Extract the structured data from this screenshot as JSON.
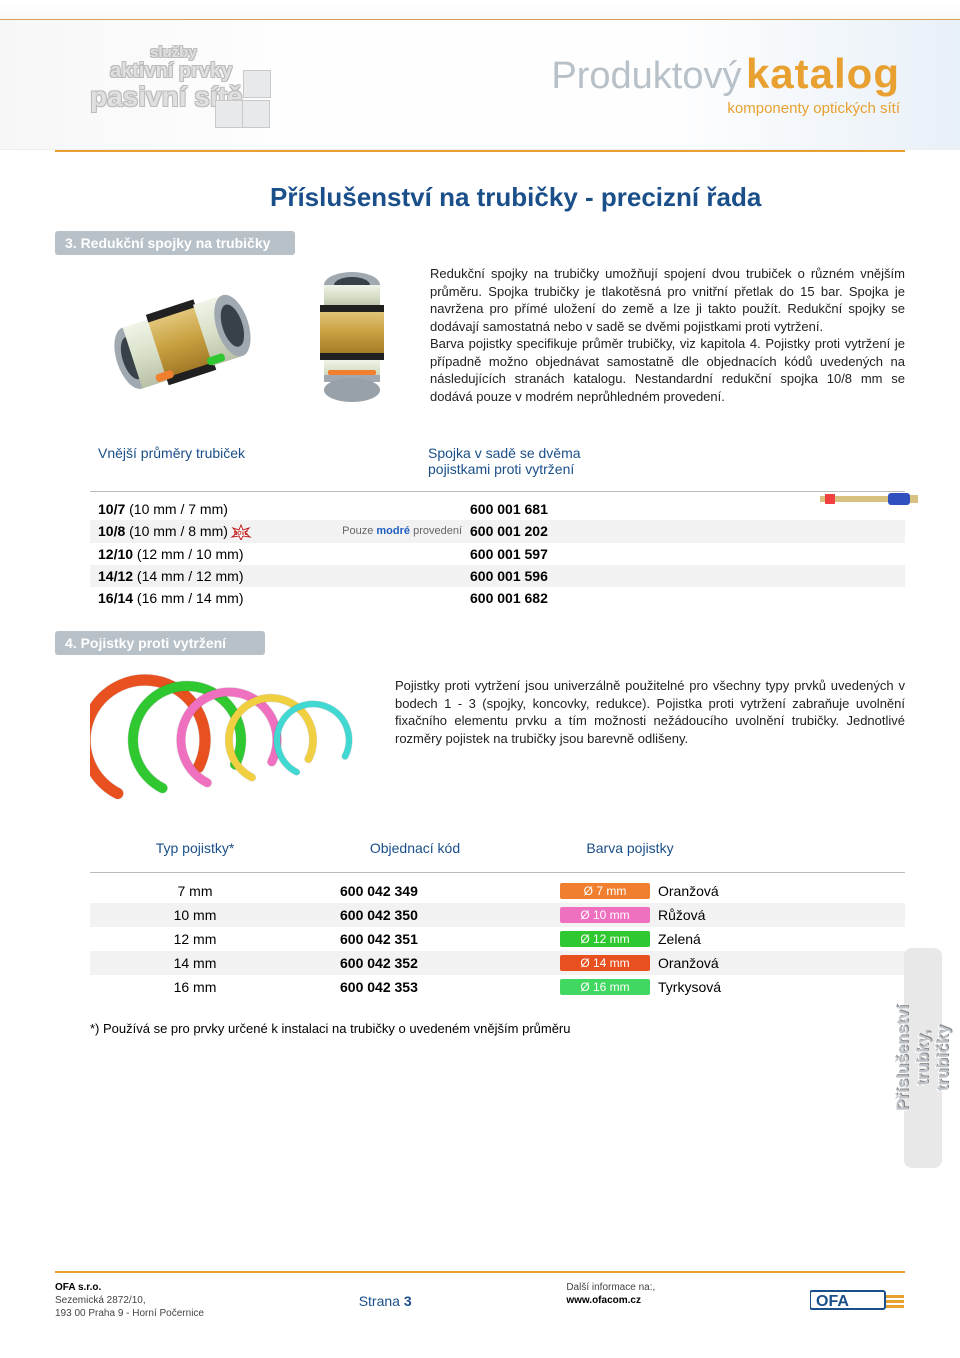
{
  "header": {
    "left_lines": [
      "služby",
      "aktivní prvky",
      "pasivní sítě"
    ],
    "title_light": "Produktový",
    "title_bold": "katalog",
    "subtitle": "komponenty optických sítí"
  },
  "page_title": "Příslušenství na trubičky - precizní řada",
  "section3": {
    "bar": "3. Redukční spojky na trubičky",
    "description": "Redukční spojky na trubičky umožňují spojení dvou trubiček o různém vnějším průměru. Spojka trubičky je tlakotěsná pro vnitřní přetlak do 15 bar. Spojka je navržena pro přímé uložení do země a lze ji takto použít. Redukční spojky se dodávají samostatná nebo v sadě se dvěmi pojistkami proti vytržení.\n        Barva pojistky specifikuje průměr trubičky, viz kapitola 4. Pojistky proti vytržení je případně možno objednávat samostatně dle objednacích kódů uvedených na následujících stranách katalogu. Nestandardní redukční spojka 10/8 mm se dodává pouze v modrém neprůhledném provedení.",
    "table_header_left": "Vnější průměry trubiček",
    "table_header_right": "Spojka v sadě se dvěma\npojistkami proti vytržení",
    "note_prefix": "Pouze ",
    "note_blue": "modré",
    "note_suffix": " provedení",
    "rows": [
      {
        "size_bold": "10/7",
        "size_rest": " (10 mm / 7 mm)",
        "note": false,
        "code": "600 001 681",
        "alt": false
      },
      {
        "size_bold": "10/8",
        "size_rest": " (10 mm / 8 mm)",
        "note": true,
        "code": "600 001 202",
        "alt": true,
        "star": true
      },
      {
        "size_bold": "12/10",
        "size_rest": " (12 mm / 10 mm)",
        "note": false,
        "code": "600 001 597",
        "alt": false
      },
      {
        "size_bold": "14/12",
        "size_rest": " (14 mm / 12 mm)",
        "note": false,
        "code": "600 001 596",
        "alt": true
      },
      {
        "size_bold": "16/14",
        "size_rest": " (16 mm / 14 mm)",
        "note": false,
        "code": "600 001 682",
        "alt": false
      }
    ]
  },
  "section4": {
    "bar": "4. Pojistky proti vytržení",
    "description": "Pojistky proti vytržení jsou univerzálně použitelné pro všechny typy prvků uvedených v bodech 1 - 3 (spojky, koncovky, redukce). Pojistka proti vytržení zabraňuje uvolnění fixačního elementu prvku a tím možnosti nežádoucího uvolnění trubičky. Jednotlivé rozměry pojistek na trubičky jsou barevně odlišeny.",
    "headers": [
      "Typ pojistky*",
      "Objednací kód",
      "Barva pojistky"
    ],
    "rows": [
      {
        "type": "7 mm",
        "code": "600 042 349",
        "badge": "Ø 7 mm",
        "badge_bg": "#f08030",
        "color": "Oranžová",
        "alt": false
      },
      {
        "type": "10 mm",
        "code": "600 042 350",
        "badge": "Ø 10 mm",
        "badge_bg": "#f070c0",
        "color": "Růžová",
        "alt": true
      },
      {
        "type": "12 mm",
        "code": "600 042 351",
        "badge": "Ø 12 mm",
        "badge_bg": "#30c830",
        "color": "Zelená",
        "alt": false
      },
      {
        "type": "14 mm",
        "code": "600 042 352",
        "badge": "Ø 14 mm",
        "badge_bg": "#e85020",
        "color": "Oranžová",
        "alt": true
      },
      {
        "type": "16 mm",
        "code": "600 042 353",
        "badge": "Ø 16 mm",
        "badge_bg": "#40d860",
        "color": "Tyrkysová",
        "alt": false
      }
    ],
    "footnote": "*) Používá se pro prvky určené k instalaci na trubičky o uvedeném vnějším průměru",
    "ring_colors": [
      "#e85020",
      "#30c830",
      "#f070c0",
      "#f0d040",
      "#40d8d0"
    ]
  },
  "side_tab": "Příslušenství\ntrubky, trubičky",
  "footer": {
    "company": "OFA s.r.o.",
    "addr1": "Sezemická 2872/10,",
    "addr2": "193 00 Praha 9 - Horní Počernice",
    "page_label": "Strana ",
    "page_num": "3",
    "info_label": "Další informace na:,",
    "web": "www.ofacom.cz"
  },
  "colors": {
    "orange": "#e8a030",
    "blue_head": "#1a4f8a",
    "grey_bar": "#b8c0c8"
  }
}
